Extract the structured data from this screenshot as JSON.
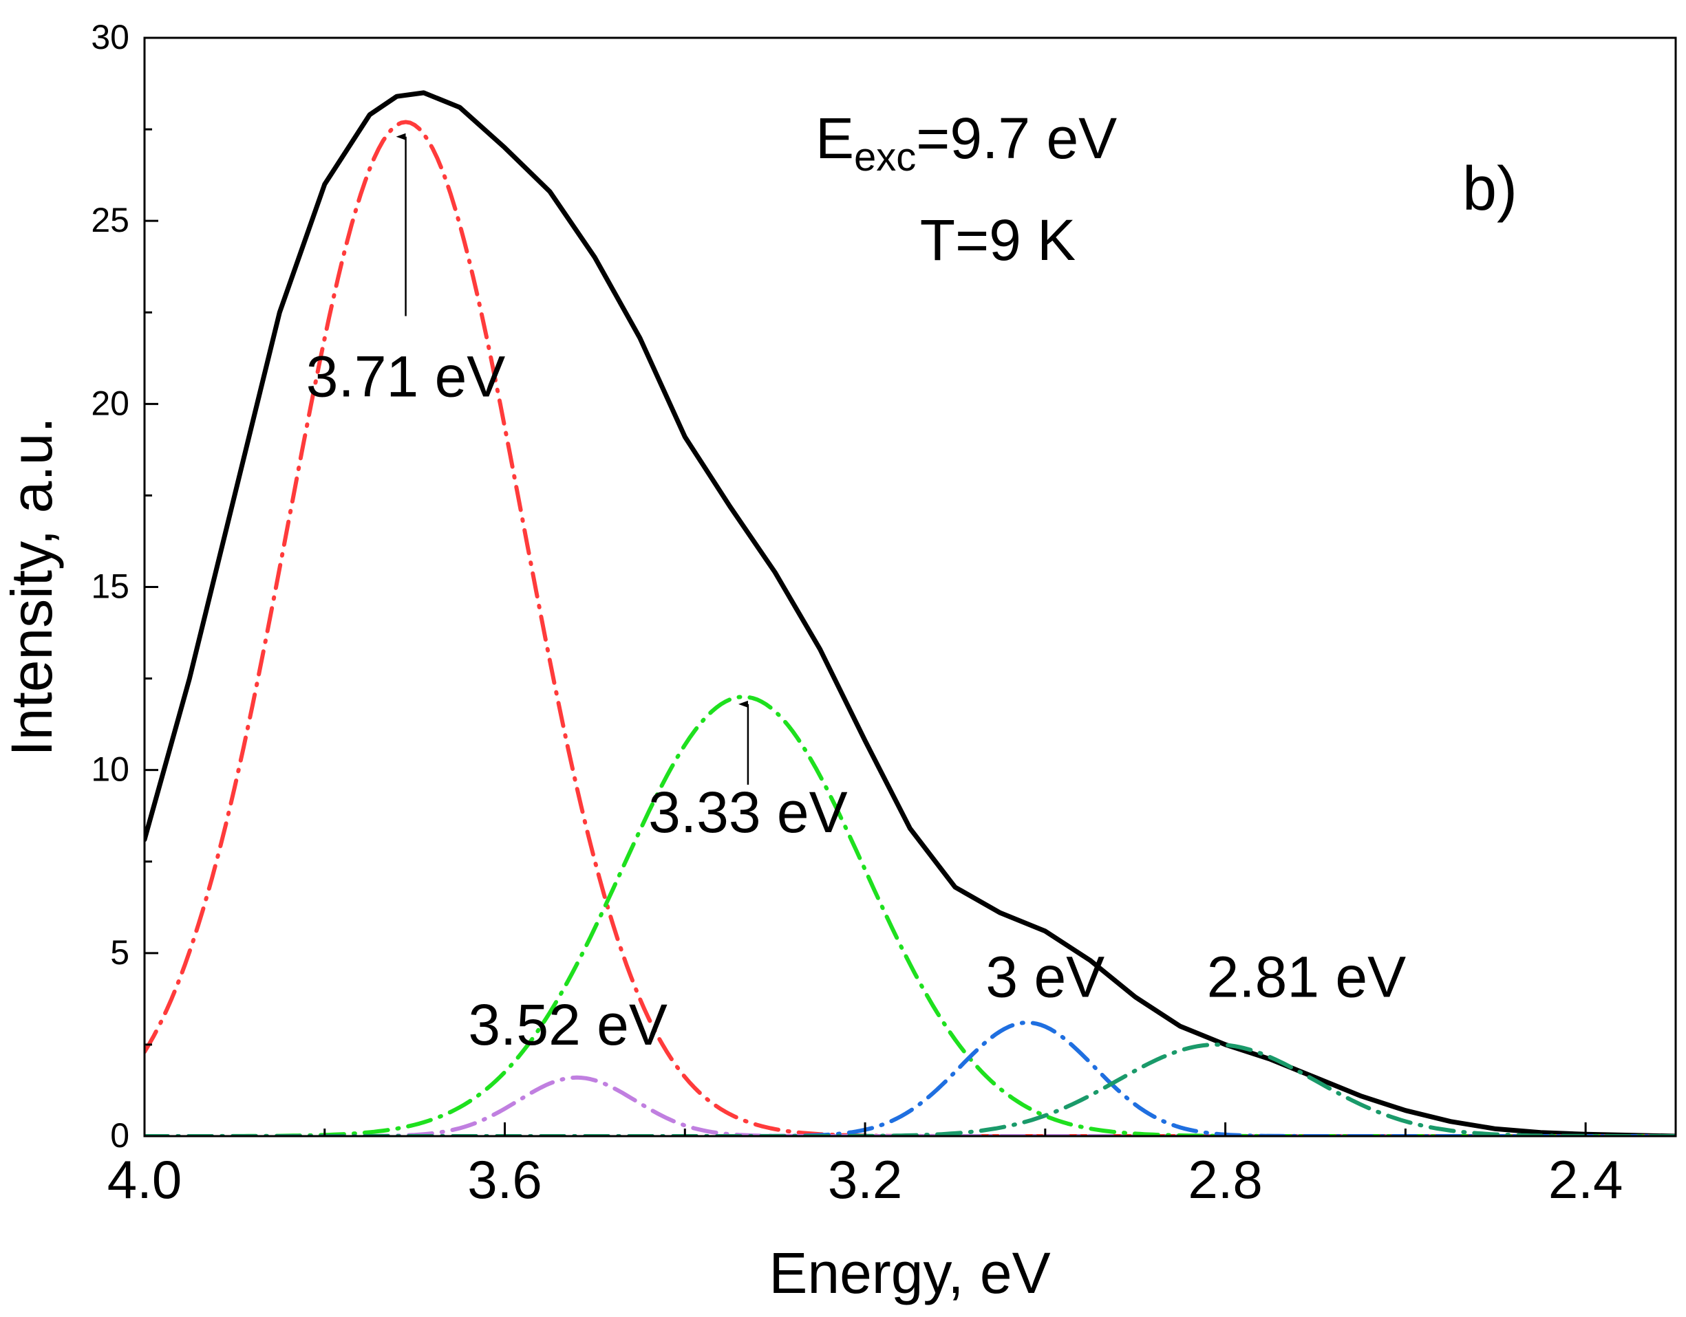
{
  "chart_data": {
    "type": "line",
    "title": "",
    "panel_label": "b)",
    "xlabel": "Energy, eV",
    "ylabel": "Intensity, a.u.",
    "xlim": [
      4.0,
      2.3
    ],
    "ylim": [
      0,
      30
    ],
    "x_ticks": [
      4.0,
      3.6,
      3.2,
      2.8,
      2.4
    ],
    "x_tick_labels": [
      "4.0",
      "3.6",
      "3.2",
      "2.8",
      "2.4"
    ],
    "y_ticks": [
      0,
      5,
      10,
      15,
      20,
      25,
      30
    ],
    "y_tick_labels": [
      "0",
      "5",
      "10",
      "15",
      "20",
      "25",
      "30"
    ],
    "grid": false,
    "conditions": {
      "excitation_prefix": "E",
      "excitation_subscript": "exc",
      "excitation_value": "=9.7 eV",
      "temperature": "T=9 K"
    },
    "series": [
      {
        "name": "total",
        "style": "solid",
        "color": "#000000",
        "points": [
          [
            4.0,
            8.1
          ],
          [
            3.95,
            12.5
          ],
          [
            3.9,
            17.5
          ],
          [
            3.85,
            22.5
          ],
          [
            3.8,
            26.0
          ],
          [
            3.75,
            27.9
          ],
          [
            3.72,
            28.4
          ],
          [
            3.69,
            28.5
          ],
          [
            3.65,
            28.1
          ],
          [
            3.6,
            27.0
          ],
          [
            3.55,
            25.8
          ],
          [
            3.5,
            24.0
          ],
          [
            3.45,
            21.8
          ],
          [
            3.4,
            19.1
          ],
          [
            3.35,
            17.2
          ],
          [
            3.3,
            15.4
          ],
          [
            3.25,
            13.3
          ],
          [
            3.2,
            10.8
          ],
          [
            3.15,
            8.4
          ],
          [
            3.1,
            6.8
          ],
          [
            3.05,
            6.1
          ],
          [
            3.0,
            5.6
          ],
          [
            2.95,
            4.8
          ],
          [
            2.9,
            3.8
          ],
          [
            2.85,
            3.0
          ],
          [
            2.8,
            2.5
          ],
          [
            2.75,
            2.1
          ],
          [
            2.7,
            1.6
          ],
          [
            2.65,
            1.1
          ],
          [
            2.6,
            0.7
          ],
          [
            2.55,
            0.4
          ],
          [
            2.5,
            0.2
          ],
          [
            2.45,
            0.1
          ],
          [
            2.4,
            0.05
          ],
          [
            2.3,
            0.0
          ]
        ]
      },
      {
        "name": "3.71 eV",
        "style": "dash-dot",
        "color": "#ff3b3b",
        "center": 3.71,
        "amplitude": 27.7,
        "sigma": 0.13
      },
      {
        "name": "3.52 eV",
        "style": "dash-dot",
        "color": "#c07fe0",
        "center": 3.52,
        "amplitude": 1.6,
        "sigma": 0.065
      },
      {
        "name": "3.33 eV",
        "style": "dash-dot",
        "color": "#1ee01e",
        "center": 3.335,
        "amplitude": 12.0,
        "sigma": 0.135
      },
      {
        "name": "3 eV",
        "style": "dash-dot",
        "color": "#1f6fe0",
        "center": 3.02,
        "amplitude": 3.1,
        "sigma": 0.075
      },
      {
        "name": "2.81 eV",
        "style": "dash-dot",
        "color": "#1a9a6a",
        "center": 2.81,
        "amplitude": 2.5,
        "sigma": 0.11
      }
    ],
    "annotations": [
      {
        "text": "3.71 eV",
        "x": 3.71,
        "y": 20.2,
        "arrow_from": [
          3.71,
          22.4
        ],
        "arrow_to": [
          3.71,
          27.3
        ]
      },
      {
        "text": "3.33 eV",
        "x": 3.33,
        "y": 8.3,
        "arrow_from": [
          3.33,
          9.6
        ],
        "arrow_to": [
          3.33,
          11.8
        ]
      },
      {
        "text": "3.52 eV",
        "x": 3.53,
        "y": 2.5
      },
      {
        "text": "3 eV",
        "x": 3.0,
        "y": 3.8
      },
      {
        "text": "2.81 eV",
        "x": 2.71,
        "y": 3.8
      }
    ]
  }
}
